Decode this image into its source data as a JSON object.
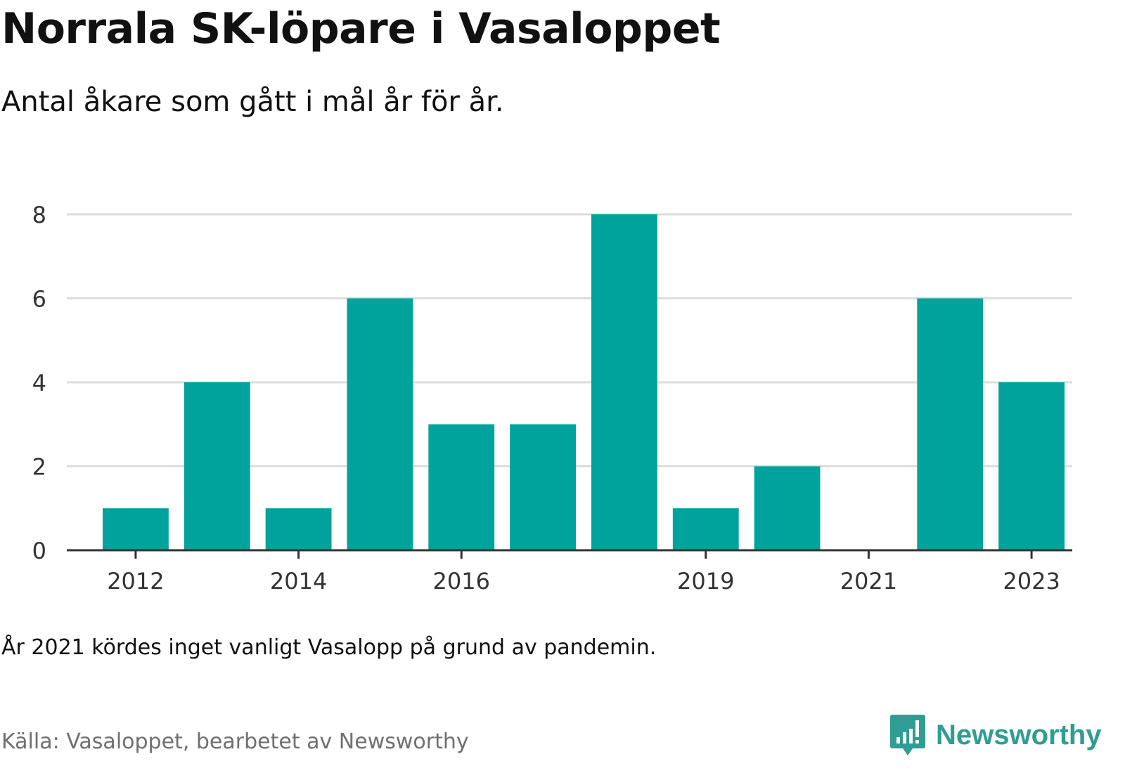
{
  "header": {
    "title": "Norrala SK-löpare i Vasaloppet",
    "subtitle": "Antal åkare som gått i mål år för år."
  },
  "footer": {
    "note": "År 2021 kördes inget vanligt Vasalopp på grund av pandemin.",
    "source": "Källa: Vasaloppet, bearbetet av Newsworthy",
    "brand": "Newsworthy",
    "brand_icon": "bar-chart-speech-bubble-icon"
  },
  "colors": {
    "bar": "#00a39b",
    "grid": "#dddddd",
    "axis": "#333333",
    "brand": "#2f9d92"
  },
  "chart_data": {
    "type": "bar",
    "title": "Norrala SK-löpare i Vasaloppet",
    "subtitle": "Antal åkare som gått i mål år för år.",
    "xlabel": "",
    "ylabel": "",
    "categories": [
      "2012",
      "2013",
      "2014",
      "2015",
      "2016",
      "2017",
      "2018",
      "2019",
      "2020",
      "2021",
      "2022",
      "2023"
    ],
    "values": [
      1,
      4,
      1,
      6,
      3,
      3,
      8,
      1,
      2,
      0,
      6,
      4
    ],
    "x_tick_labels": [
      "2012",
      "2014",
      "2016",
      "2019",
      "2021",
      "2023"
    ],
    "y_ticks": [
      0,
      2,
      4,
      6,
      8
    ],
    "ylim": [
      0,
      8
    ],
    "grid": true,
    "legend": "none"
  }
}
